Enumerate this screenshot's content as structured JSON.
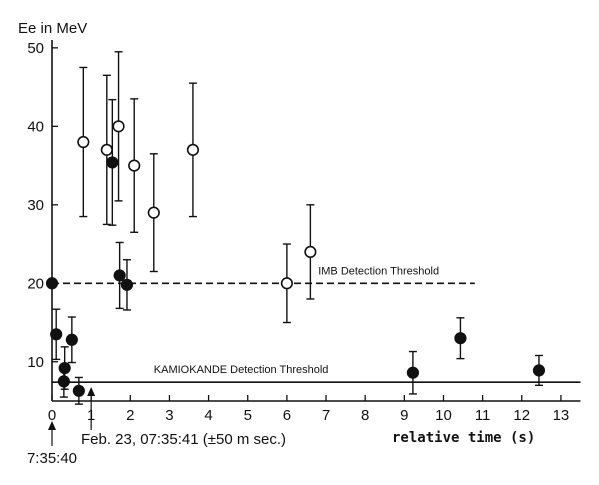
{
  "chart_data": {
    "type": "scatter",
    "ylabel": "Ee in MeV",
    "xlabel": "relative time (s)",
    "xlim": [
      0,
      13.5
    ],
    "ylim": [
      5,
      51
    ],
    "x_ticks": [
      0,
      1,
      2,
      3,
      4,
      5,
      6,
      7,
      8,
      9,
      10,
      11,
      12,
      13
    ],
    "y_ticks": [
      10,
      20,
      30,
      40,
      50
    ],
    "grid": false,
    "series": [
      {
        "marker": "filled",
        "points": [
          {
            "x": 0.0,
            "y": 20.0,
            "err": 0
          },
          {
            "x": 0.107,
            "y": 13.5,
            "err": 3.2
          },
          {
            "x": 0.303,
            "y": 7.5,
            "err": 2.0
          },
          {
            "x": 0.324,
            "y": 9.2,
            "err": 2.7
          },
          {
            "x": 0.507,
            "y": 12.8,
            "err": 2.9
          },
          {
            "x": 0.686,
            "y": 6.3,
            "err": 1.7
          },
          {
            "x": 1.541,
            "y": 35.4,
            "err": 8.0
          },
          {
            "x": 1.728,
            "y": 21.0,
            "err": 4.2
          },
          {
            "x": 1.915,
            "y": 19.8,
            "err": 3.2
          },
          {
            "x": 9.219,
            "y": 8.6,
            "err": 2.7
          },
          {
            "x": 10.433,
            "y": 13.0,
            "err": 2.6
          },
          {
            "x": 12.439,
            "y": 8.9,
            "err": 1.9
          }
        ]
      },
      {
        "marker": "open",
        "points": [
          {
            "x": 0.8,
            "y": 38.0,
            "err": 9.5
          },
          {
            "x": 1.4,
            "y": 37.0,
            "err": 9.5
          },
          {
            "x": 1.7,
            "y": 40.0,
            "err": 9.5
          },
          {
            "x": 2.1,
            "y": 35.0,
            "err": 8.5
          },
          {
            "x": 2.6,
            "y": 29.0,
            "err": 7.5
          },
          {
            "x": 3.6,
            "y": 37.0,
            "err": 8.5
          },
          {
            "x": 6.0,
            "y": 20.0,
            "err": 5.0
          },
          {
            "x": 6.6,
            "y": 24.0,
            "err": 6.0
          }
        ]
      }
    ],
    "thresholds": [
      {
        "label": "IMB Detection Threshold",
        "y": 20,
        "x_from": 0,
        "x_to": 10.8,
        "style": "dashed"
      },
      {
        "label": "KAMIOKANDE Detection Threshold",
        "y": 7.4,
        "x_from": 0,
        "x_to": 13.5,
        "style": "solid"
      }
    ],
    "annotations": {
      "start_time": "7:35:40",
      "reference_time": "Feb. 23, 07:35:41 (±50 m sec.)"
    }
  }
}
